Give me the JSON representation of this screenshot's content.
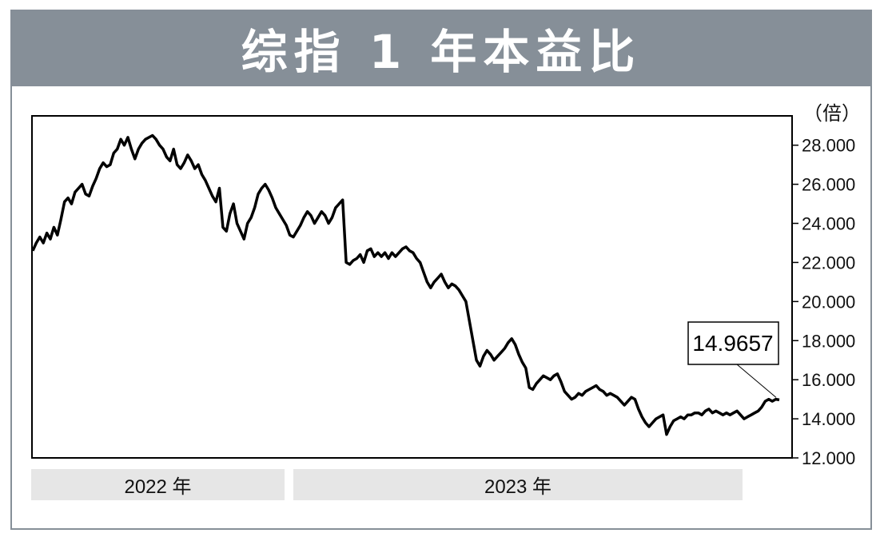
{
  "title": "综指 1 年本益比",
  "chart_data": {
    "type": "line",
    "title": "综指 1 年本益比",
    "unit_label": "（倍）",
    "ylim": [
      12,
      29.5
    ],
    "y_ticks": [
      "12.000",
      "14.000",
      "16.000",
      "18.000",
      "20.000",
      "22.000",
      "24.000",
      "26.000",
      "28.000"
    ],
    "x_period_labels": [
      "2022 年",
      "2023 年"
    ],
    "last_value_label": "14.9657",
    "series": [
      {
        "values": [
          22.6,
          23.0,
          23.3,
          23.0,
          23.5,
          23.2,
          23.8,
          23.4,
          24.2,
          25.1,
          25.3,
          25.0,
          25.6,
          25.8,
          26.0,
          25.5,
          25.4,
          25.9,
          26.3,
          26.8,
          27.1,
          26.9,
          27.0,
          27.6,
          27.8,
          28.3,
          28.0,
          28.4,
          27.8,
          27.3,
          27.8,
          28.1,
          28.3,
          28.4,
          28.5,
          28.3,
          28.0,
          27.8,
          27.4,
          27.2,
          27.8,
          27.0,
          26.8,
          27.1,
          27.5,
          27.2,
          26.8,
          27.0,
          26.5,
          26.2,
          25.8,
          25.4,
          25.1,
          25.8,
          23.8,
          23.6,
          24.5,
          25.0,
          24.0,
          23.6,
          23.2,
          24.0,
          24.3,
          24.8,
          25.5,
          25.8,
          26.0,
          25.7,
          25.3,
          24.8,
          24.5,
          24.2,
          23.9,
          23.4,
          23.3,
          23.6,
          23.9,
          24.3,
          24.6,
          24.4,
          24.0,
          24.3,
          24.6,
          24.4,
          24.0,
          24.3,
          24.8,
          25.0,
          25.2,
          22.0,
          21.9,
          22.1,
          22.2,
          22.4,
          22.0,
          22.6,
          22.7,
          22.3,
          22.5,
          22.3,
          22.5,
          22.2,
          22.5,
          22.3,
          22.5,
          22.7,
          22.8,
          22.6,
          22.5,
          22.2,
          22.0,
          21.5,
          21.0,
          20.7,
          21.0,
          21.2,
          21.4,
          21.0,
          20.7,
          20.9,
          20.8,
          20.6,
          20.3,
          20.0,
          19.0,
          18.0,
          17.0,
          16.7,
          17.2,
          17.5,
          17.3,
          17.0,
          17.2,
          17.4,
          17.6,
          17.9,
          18.1,
          17.8,
          17.3,
          16.9,
          16.6,
          15.6,
          15.5,
          15.8,
          16.0,
          16.2,
          16.1,
          16.0,
          16.2,
          16.3,
          15.9,
          15.4,
          15.2,
          15.0,
          15.1,
          15.3,
          15.2,
          15.4,
          15.5,
          15.6,
          15.7,
          15.5,
          15.4,
          15.2,
          15.3,
          15.2,
          15.1,
          14.9,
          14.7,
          14.9,
          15.1,
          15.0,
          14.5,
          14.1,
          13.8,
          13.6,
          13.8,
          14.0,
          14.1,
          14.2,
          13.2,
          13.6,
          13.9,
          14.0,
          14.1,
          14.0,
          14.2,
          14.2,
          14.3,
          14.3,
          14.2,
          14.4,
          14.5,
          14.3,
          14.4,
          14.3,
          14.2,
          14.3,
          14.2,
          14.3,
          14.4,
          14.2,
          14.0,
          14.1,
          14.2,
          14.3,
          14.4,
          14.6,
          14.9,
          15.0,
          14.9,
          15.0,
          14.97
        ]
      }
    ]
  }
}
